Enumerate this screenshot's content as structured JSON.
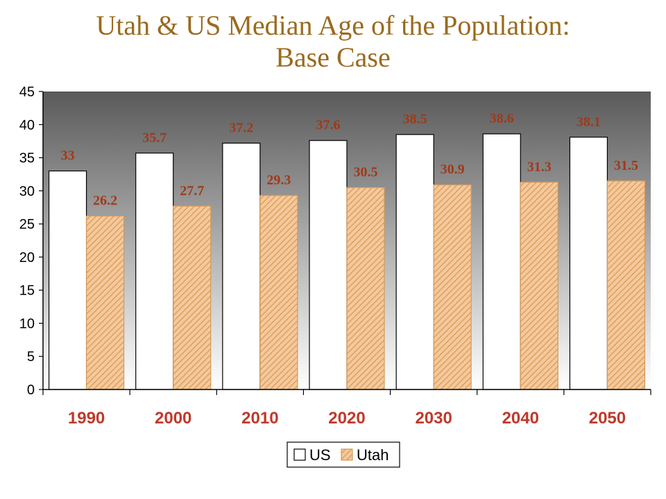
{
  "colors": {
    "title": "#9a6a1e",
    "label": "#a23818",
    "category": "#c0392b",
    "us_fill": "#ffffff",
    "utah_fill": "#f6c89a",
    "utah_hatch": "#d39a5a",
    "plot_top": "#5a5a5a",
    "plot_bottom": "#ffffff"
  },
  "chart_data": {
    "type": "bar",
    "title": "Utah & US Median Age of the Population:",
    "subtitle": "Base Case",
    "categories": [
      "1990",
      "2000",
      "2010",
      "2020",
      "2030",
      "2040",
      "2050"
    ],
    "series": [
      {
        "name": "US",
        "values": [
          33,
          35.7,
          37.2,
          37.6,
          38.5,
          38.6,
          38.1
        ]
      },
      {
        "name": "Utah",
        "values": [
          26.2,
          27.7,
          29.3,
          30.5,
          30.9,
          31.3,
          31.5
        ]
      }
    ],
    "data_labels": [
      [
        "33",
        "35.7",
        "37.2",
        "37.6",
        "38.5",
        "38.6",
        "38.1"
      ],
      [
        "26.2",
        "27.7",
        "29.3",
        "30.5",
        "30.9",
        "31.3",
        "31.5"
      ]
    ],
    "yticks": [
      0,
      5,
      10,
      15,
      20,
      25,
      30,
      35,
      40,
      45
    ],
    "ylim": [
      0,
      45
    ],
    "xlabel": "",
    "ylabel": "",
    "grid": false,
    "legend": "bottom"
  }
}
